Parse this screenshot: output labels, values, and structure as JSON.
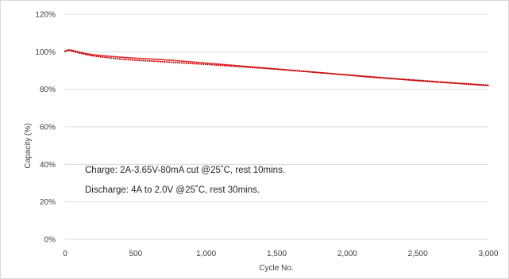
{
  "chart_data": {
    "type": "line",
    "title": "",
    "xlabel": "Cycle No.",
    "ylabel": "Capacity (%)",
    "xlim": [
      0,
      3000
    ],
    "ylim": [
      0,
      120
    ],
    "x_ticks": [
      0,
      500,
      1000,
      1500,
      2000,
      2500,
      3000
    ],
    "x_tick_labels": [
      "0",
      "500",
      "1,000",
      "1,500",
      "2,000",
      "2,500",
      "3,000"
    ],
    "y_ticks": [
      0,
      20,
      40,
      60,
      80,
      100,
      120
    ],
    "y_tick_labels": [
      "0%",
      "20%",
      "40%",
      "60%",
      "80%",
      "100%",
      "120%"
    ],
    "grid": "horizontal",
    "legend": "none",
    "colors": {
      "series1": "#e03030",
      "series2": "#c00000",
      "grid": "#d9d9d9"
    },
    "annotations": [
      "Charge: 2A-3.65V-80mA cut @25˚C, rest 10mins.",
      "Discharge: 4A to 2.0V @25˚C, rest 30mins."
    ],
    "series": [
      {
        "style": "solid",
        "x": [
          0,
          20,
          40,
          60,
          100,
          150,
          200,
          300,
          400,
          500,
          650,
          800,
          1000,
          1200,
          1500,
          1800,
          2000,
          2200,
          2500,
          2800,
          3000
        ],
        "y": [
          100.5,
          101.0,
          101.0,
          100.6,
          99.8,
          99.0,
          98.4,
          97.7,
          97.1,
          96.6,
          96.0,
          95.2,
          94.0,
          92.7,
          90.8,
          88.9,
          87.6,
          86.3,
          84.6,
          83.0,
          82.0
        ]
      },
      {
        "style": "dotted",
        "x": [
          0,
          20,
          40,
          60,
          100,
          150,
          200,
          300,
          400,
          500,
          650,
          800,
          1000,
          1200,
          1500,
          1800,
          2000,
          2200,
          2500,
          2800,
          3000
        ],
        "y": [
          100.2,
          100.8,
          100.6,
          100.2,
          99.4,
          98.5,
          97.8,
          96.9,
          96.1,
          95.5,
          94.9,
          94.2,
          93.3,
          92.3,
          90.7,
          88.9,
          87.7,
          86.5,
          84.8,
          83.2,
          82.2
        ]
      }
    ]
  }
}
